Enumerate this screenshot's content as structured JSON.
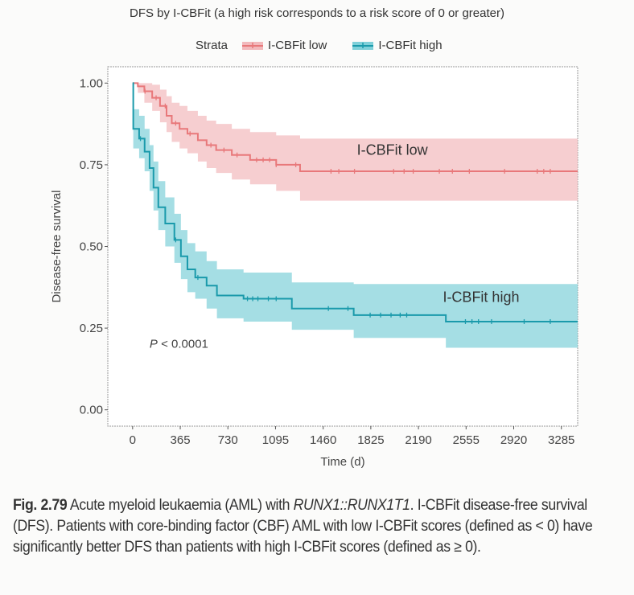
{
  "chart_data": {
    "type": "line",
    "subtype": "kaplan-meier",
    "title": "DFS by I-CBFit (a high risk corresponds to a risk score of 0 or greater)",
    "xlabel": "Time (d)",
    "ylabel": "Disease-free survival",
    "xlim": [
      -190,
      3410
    ],
    "ylim": [
      -0.05,
      1.05
    ],
    "xticks": [
      0,
      365,
      730,
      1095,
      1460,
      1825,
      2190,
      2555,
      2920,
      3285
    ],
    "yticks": [
      "0.00",
      "0.25",
      "0.50",
      "0.75",
      "1.00"
    ],
    "yticks_values": [
      0,
      0.25,
      0.5,
      0.75,
      1.0
    ],
    "legend": {
      "title": "Strata",
      "placement": "top"
    },
    "annotation": "P < 0.0001",
    "series": [
      {
        "name": "I-CBFit low",
        "color": "#e8787a",
        "band_color": "#f2b9bc",
        "label": "I-CBFit low",
        "steps": [
          [
            0,
            1.0,
            1.0,
            1.0
          ],
          [
            40,
            0.99,
            0.97,
            1.0
          ],
          [
            90,
            0.975,
            0.94,
            1.0
          ],
          [
            150,
            0.955,
            0.915,
            0.995
          ],
          [
            210,
            0.93,
            0.88,
            0.98
          ],
          [
            260,
            0.9,
            0.85,
            0.96
          ],
          [
            300,
            0.877,
            0.82,
            0.94
          ],
          [
            360,
            0.86,
            0.8,
            0.93
          ],
          [
            420,
            0.845,
            0.785,
            0.915
          ],
          [
            500,
            0.825,
            0.76,
            0.9
          ],
          [
            567,
            0.81,
            0.74,
            0.885
          ],
          [
            640,
            0.795,
            0.725,
            0.875
          ],
          [
            760,
            0.78,
            0.705,
            0.86
          ],
          [
            900,
            0.765,
            0.69,
            0.85
          ],
          [
            1100,
            0.75,
            0.67,
            0.84
          ],
          [
            1283,
            0.73,
            0.64,
            0.83
          ],
          [
            3410,
            0.73,
            0.64,
            0.83
          ]
        ],
        "censored": [
          95,
          180,
          250,
          330,
          440,
          600,
          700,
          800,
          950,
          1000,
          1050,
          1100,
          1250,
          1520,
          1580,
          1700,
          2000,
          2080,
          2150,
          2350,
          2450,
          2580,
          2850,
          3100,
          3150,
          3200
        ]
      },
      {
        "name": "I-CBFit high",
        "color": "#1a9aab",
        "band_color": "#7fd0d9",
        "label": "I-CBFit high",
        "steps": [
          [
            0,
            1.0,
            1.0,
            1.0
          ],
          [
            5,
            0.86,
            0.8,
            0.92
          ],
          [
            50,
            0.83,
            0.77,
            0.9
          ],
          [
            92,
            0.79,
            0.73,
            0.86
          ],
          [
            130,
            0.74,
            0.67,
            0.81
          ],
          [
            160,
            0.68,
            0.61,
            0.76
          ],
          [
            197,
            0.62,
            0.55,
            0.7
          ],
          [
            250,
            0.57,
            0.5,
            0.65
          ],
          [
            320,
            0.52,
            0.45,
            0.6
          ],
          [
            370,
            0.47,
            0.4,
            0.55
          ],
          [
            420,
            0.43,
            0.36,
            0.51
          ],
          [
            480,
            0.405,
            0.34,
            0.485
          ],
          [
            567,
            0.38,
            0.31,
            0.455
          ],
          [
            646,
            0.35,
            0.28,
            0.43
          ],
          [
            850,
            0.34,
            0.27,
            0.42
          ],
          [
            1220,
            0.31,
            0.245,
            0.39
          ],
          [
            1694,
            0.29,
            0.22,
            0.385
          ],
          [
            2400,
            0.27,
            0.19,
            0.385
          ],
          [
            3410,
            0.27,
            0.19,
            0.385
          ]
        ],
        "censored": [
          60,
          330,
          500,
          880,
          920,
          960,
          1040,
          1100,
          1500,
          1650,
          1820,
          1900,
          1980,
          2050,
          2100,
          2550,
          2600,
          2650,
          2750,
          3000,
          3200
        ]
      }
    ]
  },
  "caption": {
    "fig_label": "Fig. 2.79",
    "text_1": " Acute myeloid leukaemia (AML) with ",
    "gene": "RUNX1::RUNX1T1",
    "text_2": ". I-CBFit disease-free survival (DFS). Patients with core-binding factor (CBF) AML with low I-CBFit scores (defined as < 0) have significantly better DFS than patients with high I-CBFit scores (defined as ≥ 0)."
  }
}
